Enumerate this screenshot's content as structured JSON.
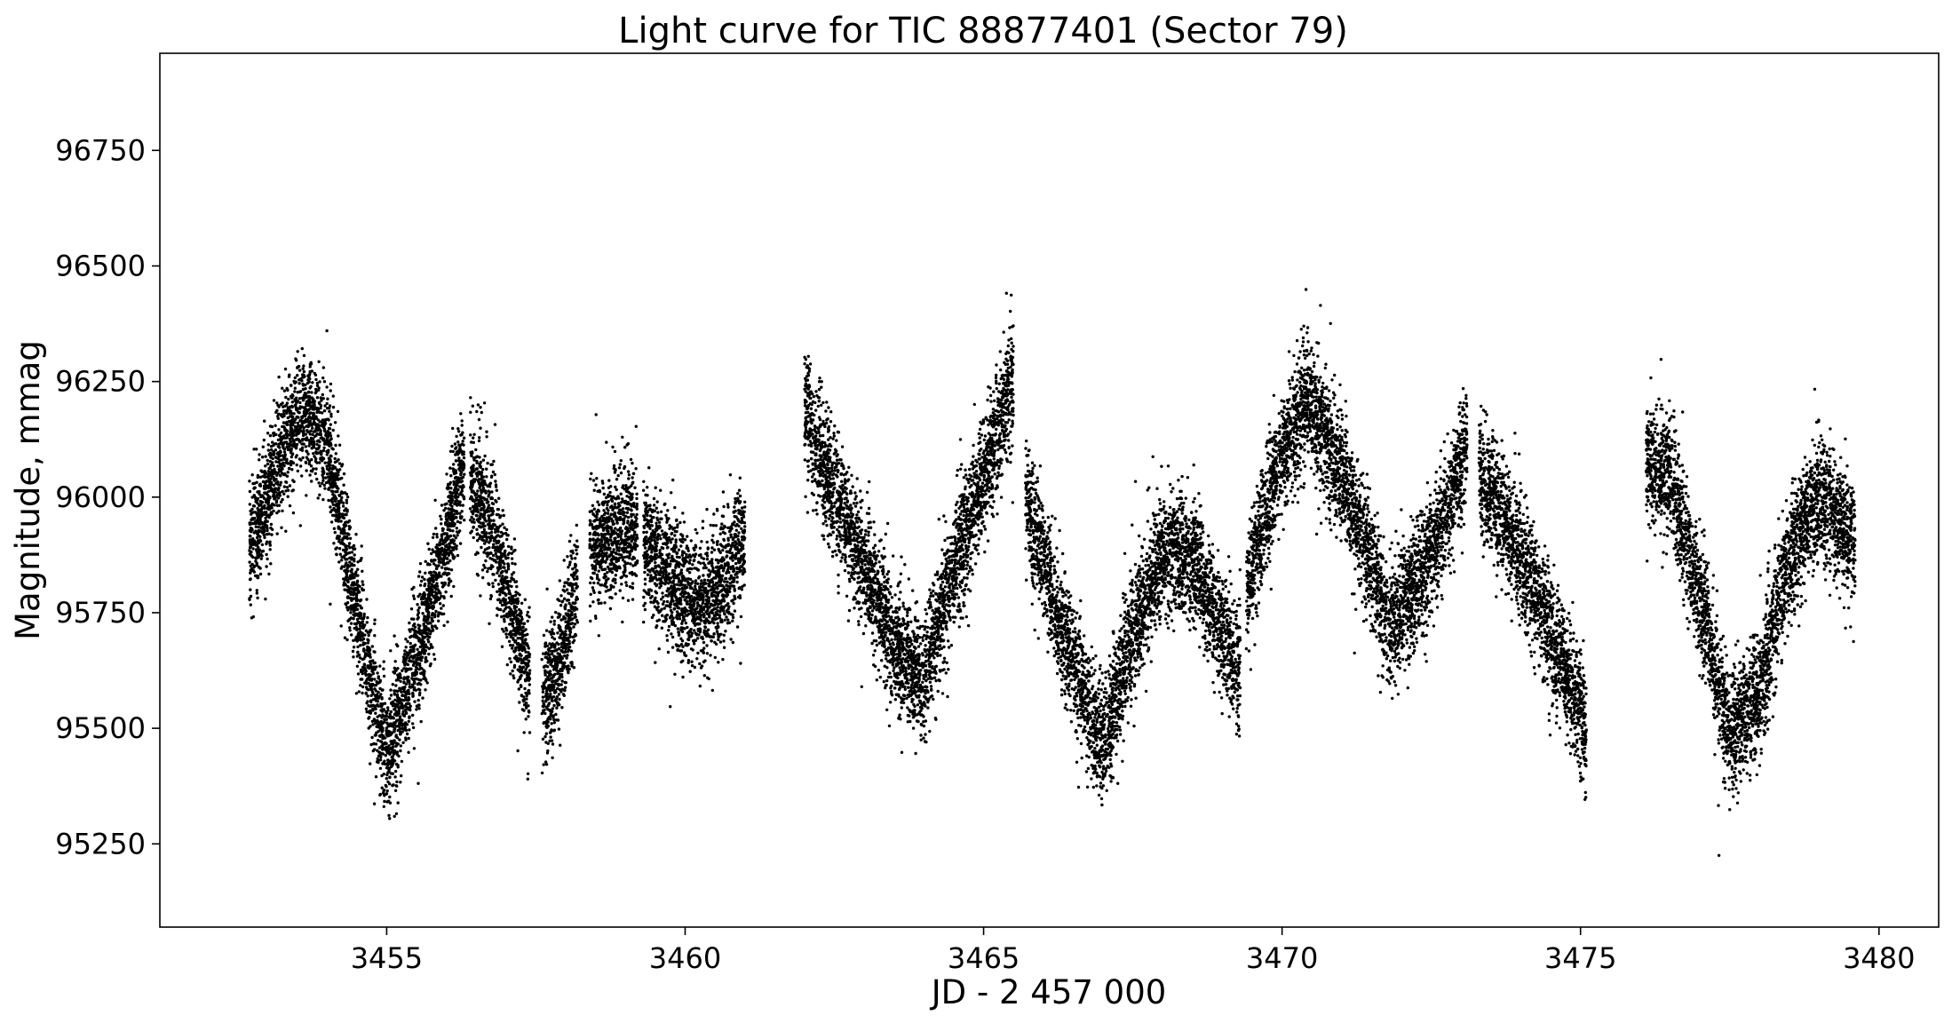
{
  "chart_data": {
    "type": "scatter",
    "title": "Light curve for TIC 88877401 (Sector 79)",
    "xlabel": "JD - 2 457 000",
    "ylabel": "Magnitude, mmag",
    "xlim": [
      3451.2,
      3481.0
    ],
    "ylim": [
      95070,
      96960
    ],
    "x_ticks": [
      3455,
      3460,
      3465,
      3470,
      3475,
      3480
    ],
    "x_tick_labels": [
      "3455",
      "3460",
      "3465",
      "3470",
      "3475",
      "3480"
    ],
    "y_ticks": [
      95250,
      95500,
      95750,
      96000,
      96250,
      96500,
      96750
    ],
    "y_tick_labels": [
      "95250",
      "95500",
      "95750",
      "96000",
      "96250",
      "96500",
      "96750"
    ],
    "grid": false,
    "legend": "none",
    "marker_color": "#000000",
    "series": [
      {
        "segments": [
          {
            "x": [
              3452.7,
              3453.2,
              3453.6,
              3454.0,
              3454.5,
              3455.0,
              3455.5,
              3456.0,
              3456.3
            ],
            "y": [
              95880,
              96090,
              96200,
              96120,
              95750,
              95440,
              95650,
              95900,
              96080
            ]
          },
          {
            "x": [
              3456.4,
              3456.8,
              3457.1,
              3457.4
            ],
            "y": [
              96050,
              95920,
              95760,
              95600
            ]
          },
          {
            "x": [
              3457.6,
              3457.9,
              3458.2
            ],
            "y": [
              95550,
              95650,
              95810
            ]
          },
          {
            "x": [
              3458.4,
              3458.8,
              3459.2
            ],
            "y": [
              95880,
              95920,
              95940
            ]
          },
          {
            "x": [
              3459.3,
              3459.7,
              3460.2,
              3460.6,
              3461.0
            ],
            "y": [
              95900,
              95830,
              95760,
              95800,
              95920
            ]
          },
          {
            "x": [
              3462.0,
              3462.5,
              3463.0,
              3463.5,
              3464.0,
              3464.5,
              3465.0,
              3465.5
            ],
            "y": [
              96180,
              96000,
              95850,
              95680,
              95600,
              95850,
              96050,
              96250
            ]
          },
          {
            "x": [
              3465.7,
              3466.2,
              3466.7,
              3467.0,
              3467.5,
              3468.0,
              3468.5,
              3469.0,
              3469.3
            ],
            "y": [
              96000,
              95760,
              95560,
              95470,
              95700,
              95880,
              95880,
              95700,
              95620
            ]
          },
          {
            "x": [
              3469.4,
              3469.9,
              3470.4,
              3470.9,
              3471.4,
              3471.8,
              3472.2,
              3472.7,
              3473.1
            ],
            "y": [
              95800,
              96050,
              96220,
              96070,
              95900,
              95720,
              95800,
              95940,
              96120
            ]
          },
          {
            "x": [
              3473.3,
              3473.8,
              3474.3,
              3474.8,
              3475.1
            ],
            "y": [
              96050,
              95930,
              95780,
              95600,
              95500
            ]
          },
          {
            "x": [
              3476.1,
              3476.5,
              3477.0,
              3477.5,
              3478.0,
              3478.5,
              3479.0,
              3479.6
            ],
            "y": [
              96080,
              96040,
              95780,
              95480,
              95580,
              95870,
              96010,
              95900
            ]
          }
        ]
      }
    ]
  }
}
